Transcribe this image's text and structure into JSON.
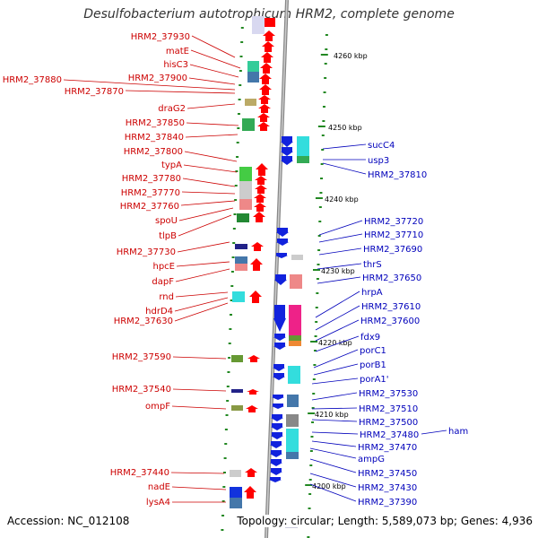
{
  "title": "Desulfobacterium autotrophicum HRM2, complete genome",
  "accession": "Accession: NC_012108",
  "summary": "Topology: circular; Length: 5,589,073 bp; Genes: 4,936",
  "scale_ticks": [
    "4260 kbp",
    "4250 kbp",
    "4240 kbp",
    "4230 kbp",
    "4220 kbp",
    "4210 kbp",
    "4200 kbp"
  ],
  "left_labels": [
    "HRM2_37930",
    "matE",
    "hisC3",
    "HRM2_37900",
    "HRM2_37880",
    "HRM2_37870",
    "draG2",
    "HRM2_37850",
    "HRM2_37840",
    "HRM2_37800",
    "typA",
    "HRM2_37780",
    "HRM2_37770",
    "HRM2_37760",
    "spoU",
    "tlpB",
    "HRM2_37730",
    "hpcE",
    "dapF",
    "rnd",
    "hdrD4",
    "HRM2_37630",
    "HRM2_37590",
    "HRM2_37540",
    "ompF",
    "HRM2_37440",
    "nadE",
    "lysA4"
  ],
  "right_labels": [
    "sucC4",
    "usp3",
    "HRM2_37810",
    "HRM2_37720",
    "HRM2_37710",
    "HRM2_37690",
    "thrS",
    "HRM2_37650",
    "hrpA",
    "HRM2_37610",
    "HRM2_37600",
    "fdx9",
    "porC1",
    "porB1",
    "porA1'",
    "HRM2_37530",
    "HRM2_37510",
    "HRM2_37500",
    "HRM2_37480",
    "ham",
    "HRM2_37470",
    "ampG",
    "HRM2_37450",
    "HRM2_37430",
    "HRM2_37390"
  ]
}
